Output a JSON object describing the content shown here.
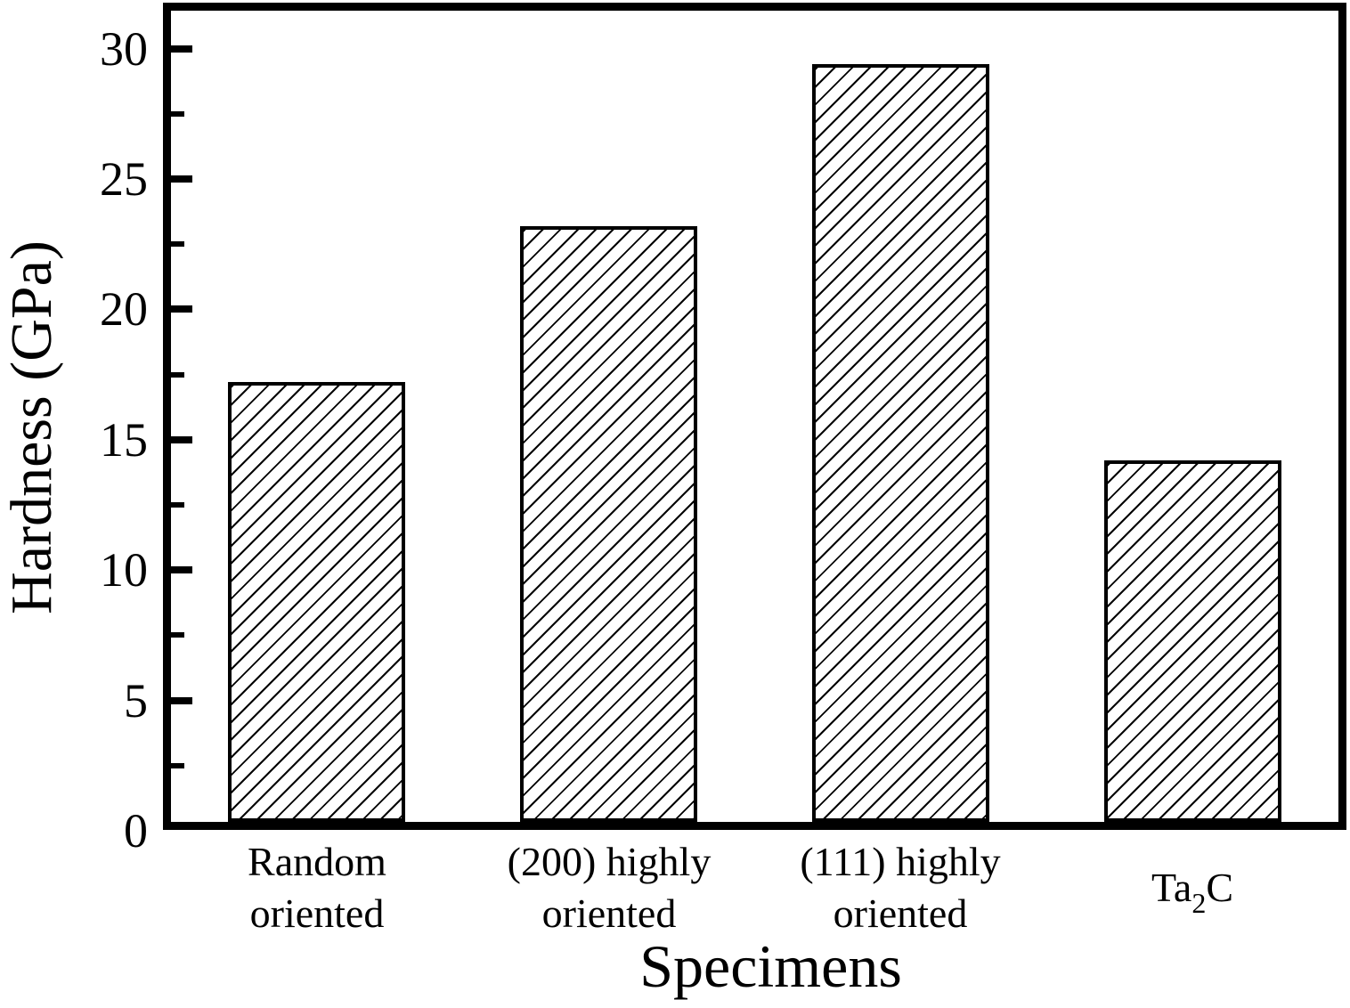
{
  "figure": {
    "background": "#ffffff",
    "text_color": "#000000",
    "axis_color": "#000000"
  },
  "chart_data": {
    "type": "bar",
    "title": "",
    "xlabel": "Specimens",
    "ylabel": "Hardness (GPa)",
    "category_labels_flat": [
      "Random oriented",
      "(200) highly oriented",
      "(111) highly oriented",
      "Ta2C"
    ],
    "categories": [
      {
        "name": "random-oriented",
        "lines": [
          [
            "Random"
          ],
          [
            "oriented"
          ]
        ]
      },
      {
        "name": "200-highly-oriented",
        "lines": [
          [
            "(200) highly"
          ],
          [
            "oriented"
          ]
        ]
      },
      {
        "name": "111-highly-oriented",
        "lines": [
          [
            "(111) highly"
          ],
          [
            "oriented"
          ]
        ]
      },
      {
        "name": "ta2c",
        "lines": [
          [
            "Ta",
            {
              "sub": "2"
            },
            "C"
          ]
        ]
      }
    ],
    "values": [
      17.2,
      23.2,
      29.4,
      14.2
    ],
    "unit": "GPa",
    "ylim": [
      0,
      31.3
    ],
    "y_major_ticks": [
      0,
      5,
      10,
      15,
      20,
      25,
      30
    ],
    "y_minor_ticks": [
      2.5,
      7.5,
      12.5,
      17.5,
      22.5,
      27.5
    ],
    "grid": "off",
    "legend": "none",
    "bar_style": {
      "fill": "diagonal-hatch-forward-slash",
      "hatch_color": "#000000",
      "edge_color": "#000000",
      "face_color": "#ffffff"
    }
  }
}
